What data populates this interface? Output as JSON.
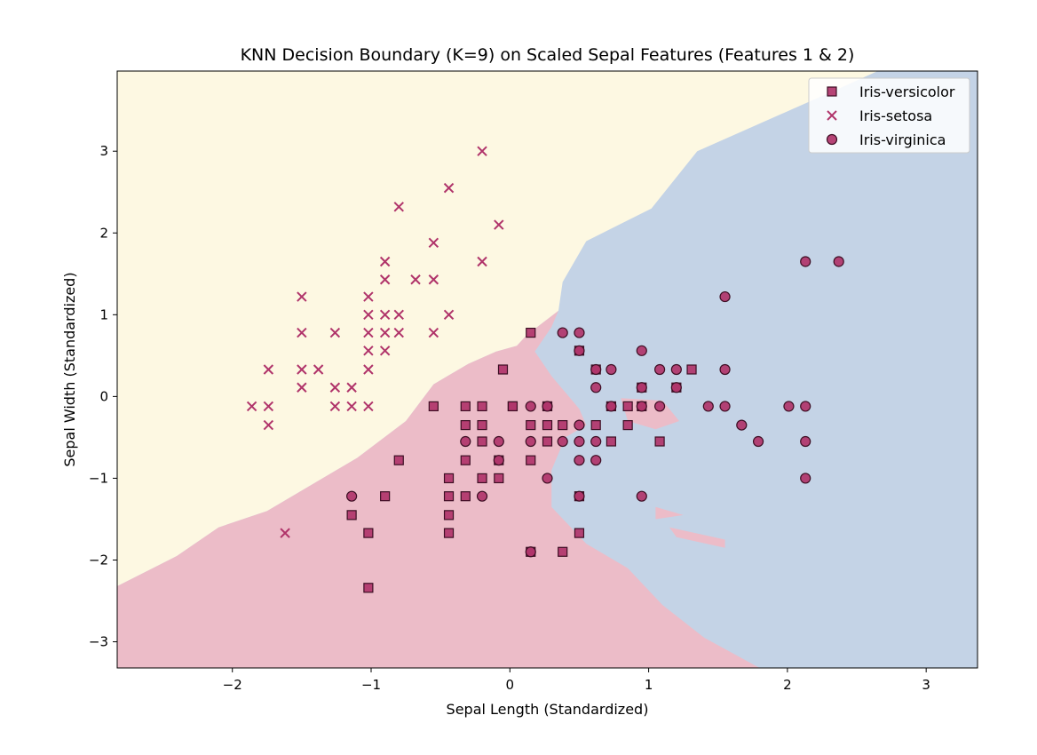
{
  "chart_data": {
    "type": "scatter",
    "title": "KNN Decision Boundary (K=9) on Scaled Sepal Features (Features 1 & 2)",
    "xlabel": "Sepal Length (Standardized)",
    "ylabel": "Sepal Width (Standardized)",
    "xlim": [
      -2.83,
      3.37
    ],
    "ylim": [
      -3.32,
      3.98
    ],
    "xticks": [
      -2,
      -1,
      0,
      1,
      2,
      3
    ],
    "yticks": [
      -3,
      -2,
      -1,
      0,
      1,
      2,
      3
    ],
    "xtick_labels": [
      "−2",
      "−1",
      "0",
      "1",
      "2",
      "3"
    ],
    "ytick_labels": [
      "−3",
      "−2",
      "−1",
      "0",
      "1",
      "2",
      "3"
    ],
    "grid": false,
    "legend_position": "top-right",
    "region_colors": {
      "setosa": "#fdf8e2",
      "versicolor": "#ecbcc8",
      "virginica": "#c4d3e6"
    },
    "marker_color": "#b0346a",
    "marker_edge": "#3d0f24",
    "legend_labels": [
      "Iris-versicolor",
      "Iris-setosa",
      "Iris-virginica"
    ],
    "series": [
      {
        "name": "Iris-versicolor",
        "marker": "square",
        "points": [
          [
            0.15,
            0.78
          ],
          [
            -0.05,
            0.33
          ],
          [
            0.02,
            -0.12
          ],
          [
            0.5,
            0.56
          ],
          [
            0.62,
            0.33
          ],
          [
            0.95,
            0.11
          ],
          [
            1.2,
            0.11
          ],
          [
            1.31,
            0.33
          ],
          [
            -0.55,
            -0.12
          ],
          [
            -0.32,
            -0.12
          ],
          [
            -0.2,
            -0.12
          ],
          [
            0.02,
            -0.12
          ],
          [
            0.15,
            -0.35
          ],
          [
            0.27,
            -0.12
          ],
          [
            0.27,
            -0.35
          ],
          [
            0.38,
            -0.35
          ],
          [
            0.62,
            -0.35
          ],
          [
            0.73,
            -0.12
          ],
          [
            0.85,
            -0.12
          ],
          [
            0.95,
            -0.12
          ],
          [
            -0.32,
            -0.35
          ],
          [
            -0.2,
            -0.35
          ],
          [
            0.73,
            -0.55
          ],
          [
            0.85,
            -0.35
          ],
          [
            -0.8,
            -0.78
          ],
          [
            -0.32,
            -0.78
          ],
          [
            -0.2,
            -0.55
          ],
          [
            0.15,
            -0.78
          ],
          [
            0.27,
            -0.55
          ],
          [
            1.08,
            -0.55
          ],
          [
            -0.44,
            -1.0
          ],
          [
            -0.2,
            -1.0
          ],
          [
            -0.08,
            -1.0
          ],
          [
            -0.08,
            -0.78
          ],
          [
            -0.9,
            -1.22
          ],
          [
            -0.44,
            -1.22
          ],
          [
            -0.32,
            -1.22
          ],
          [
            0.5,
            -1.22
          ],
          [
            -1.14,
            -1.45
          ],
          [
            -0.44,
            -1.45
          ],
          [
            -1.02,
            -1.67
          ],
          [
            -0.44,
            -1.67
          ],
          [
            0.5,
            -1.67
          ],
          [
            0.15,
            -1.9
          ],
          [
            0.38,
            -1.9
          ],
          [
            -1.02,
            -2.34
          ]
        ]
      },
      {
        "name": "Iris-setosa",
        "marker": "x",
        "points": [
          [
            -0.2,
            3.0
          ],
          [
            -0.44,
            2.55
          ],
          [
            -0.8,
            2.32
          ],
          [
            -0.08,
            2.1
          ],
          [
            -0.55,
            1.88
          ],
          [
            -0.9,
            1.65
          ],
          [
            -0.2,
            1.65
          ],
          [
            -0.9,
            1.43
          ],
          [
            -0.68,
            1.43
          ],
          [
            -0.55,
            1.43
          ],
          [
            -1.5,
            1.22
          ],
          [
            -1.02,
            1.22
          ],
          [
            -1.02,
            1.0
          ],
          [
            -0.9,
            1.0
          ],
          [
            -0.8,
            1.0
          ],
          [
            -0.44,
            1.0
          ],
          [
            -1.5,
            0.78
          ],
          [
            -1.26,
            0.78
          ],
          [
            -1.02,
            0.78
          ],
          [
            -0.9,
            0.78
          ],
          [
            -0.8,
            0.78
          ],
          [
            -0.55,
            0.78
          ],
          [
            -1.02,
            0.56
          ],
          [
            -0.9,
            0.56
          ],
          [
            -1.74,
            0.33
          ],
          [
            -1.5,
            0.33
          ],
          [
            -1.38,
            0.33
          ],
          [
            -1.02,
            0.33
          ],
          [
            -1.5,
            0.11
          ],
          [
            -1.26,
            0.11
          ],
          [
            -1.14,
            0.11
          ],
          [
            -1.86,
            -0.12
          ],
          [
            -1.74,
            -0.12
          ],
          [
            -1.26,
            -0.12
          ],
          [
            -1.14,
            -0.12
          ],
          [
            -1.02,
            -0.12
          ],
          [
            -1.74,
            -0.35
          ],
          [
            -1.62,
            -1.67
          ]
        ]
      },
      {
        "name": "Iris-virginica",
        "marker": "circle",
        "points": [
          [
            2.13,
            1.65
          ],
          [
            2.37,
            1.65
          ],
          [
            1.55,
            1.22
          ],
          [
            0.38,
            0.78
          ],
          [
            0.5,
            0.78
          ],
          [
            0.5,
            0.56
          ],
          [
            0.95,
            0.56
          ],
          [
            0.62,
            0.33
          ],
          [
            0.73,
            0.33
          ],
          [
            1.08,
            0.33
          ],
          [
            1.2,
            0.33
          ],
          [
            1.55,
            0.33
          ],
          [
            0.62,
            0.11
          ],
          [
            0.95,
            0.11
          ],
          [
            1.2,
            0.11
          ],
          [
            0.15,
            -0.12
          ],
          [
            0.27,
            -0.12
          ],
          [
            0.73,
            -0.12
          ],
          [
            0.95,
            -0.12
          ],
          [
            1.08,
            -0.12
          ],
          [
            1.43,
            -0.12
          ],
          [
            1.55,
            -0.12
          ],
          [
            2.01,
            -0.12
          ],
          [
            2.13,
            -0.12
          ],
          [
            0.5,
            -0.35
          ],
          [
            1.67,
            -0.35
          ],
          [
            -0.32,
            -0.55
          ],
          [
            -0.08,
            -0.55
          ],
          [
            0.15,
            -0.55
          ],
          [
            0.38,
            -0.55
          ],
          [
            0.5,
            -0.55
          ],
          [
            0.62,
            -0.55
          ],
          [
            1.79,
            -0.55
          ],
          [
            2.13,
            -0.55
          ],
          [
            -0.08,
            -0.78
          ],
          [
            0.5,
            -0.78
          ],
          [
            0.62,
            -0.78
          ],
          [
            0.27,
            -1.0
          ],
          [
            2.13,
            -1.0
          ],
          [
            -1.14,
            -1.22
          ],
          [
            -0.2,
            -1.22
          ],
          [
            0.5,
            -1.22
          ],
          [
            0.95,
            -1.22
          ],
          [
            0.15,
            -1.9
          ]
        ]
      }
    ]
  }
}
